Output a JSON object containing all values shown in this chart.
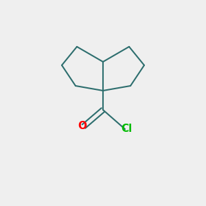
{
  "background_color": "#efefef",
  "bond_color": "#2d6e6e",
  "oxygen_color": "#ff0000",
  "chlorine_color": "#00bb00",
  "line_width": 1.5,
  "font_size_O": 11,
  "font_size_Cl": 11,
  "figure_size": [
    3.0,
    3.0
  ],
  "dpi": 100
}
